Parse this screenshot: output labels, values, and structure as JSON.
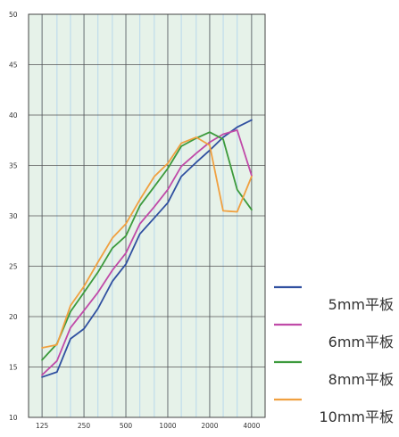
{
  "chart_data": {
    "type": "line",
    "title": "",
    "xlabel": "",
    "ylabel": "",
    "x_scale": "log",
    "x_ticks": [
      125,
      250,
      500,
      1000,
      2000,
      4000
    ],
    "x_tick_labels": [
      "125",
      "250",
      "500",
      "1000",
      "2000",
      "4000"
    ],
    "x_grid": [
      100,
      125,
      160,
      200,
      250,
      315,
      400,
      500,
      630,
      800,
      1000,
      1250,
      1600,
      2000,
      2500,
      3150,
      4000
    ],
    "xlim": [
      100,
      5000
    ],
    "ylim": [
      10,
      50
    ],
    "y_ticks": [
      10,
      15,
      20,
      25,
      30,
      35,
      40,
      45,
      50
    ],
    "y_tick_labels": [
      "10",
      "15",
      "20",
      "25",
      "30",
      "35",
      "40",
      "45",
      "50"
    ],
    "grid": true,
    "legend_position": "right",
    "x": [
      125,
      160,
      200,
      250,
      315,
      400,
      500,
      630,
      800,
      1000,
      1250,
      1600,
      2000,
      2500,
      3150,
      4000
    ],
    "series": [
      {
        "name": "5mm平板",
        "color": "#3050a0",
        "values": [
          14.0,
          14.5,
          17.8,
          18.8,
          20.8,
          23.5,
          25.2,
          28.2,
          29.8,
          31.3,
          33.9,
          35.3,
          36.5,
          37.8,
          38.8,
          39.5
        ]
      },
      {
        "name": "6mm平板",
        "color": "#c04aa8",
        "values": [
          14.2,
          15.6,
          18.9,
          20.6,
          22.4,
          24.6,
          26.3,
          29.2,
          30.9,
          32.6,
          34.9,
          36.2,
          37.3,
          38.1,
          38.5,
          34.0
        ]
      },
      {
        "name": "8mm平板",
        "color": "#3c9a3c",
        "values": [
          15.7,
          17.3,
          20.5,
          22.4,
          24.4,
          26.8,
          28.0,
          31.0,
          32.9,
          34.7,
          36.9,
          37.7,
          38.3,
          37.6,
          32.6,
          30.6
        ]
      },
      {
        "name": "10mm平板",
        "color": "#f0a040",
        "values": [
          16.9,
          17.2,
          21.1,
          23.0,
          25.4,
          27.8,
          29.2,
          31.6,
          33.9,
          35.2,
          37.2,
          37.8,
          37.0,
          30.5,
          30.4,
          33.9
        ]
      }
    ]
  },
  "colors": {
    "plot_background": "#e6f2e9",
    "major_grid": "#555555",
    "minor_grid": "#b8d8ec"
  }
}
